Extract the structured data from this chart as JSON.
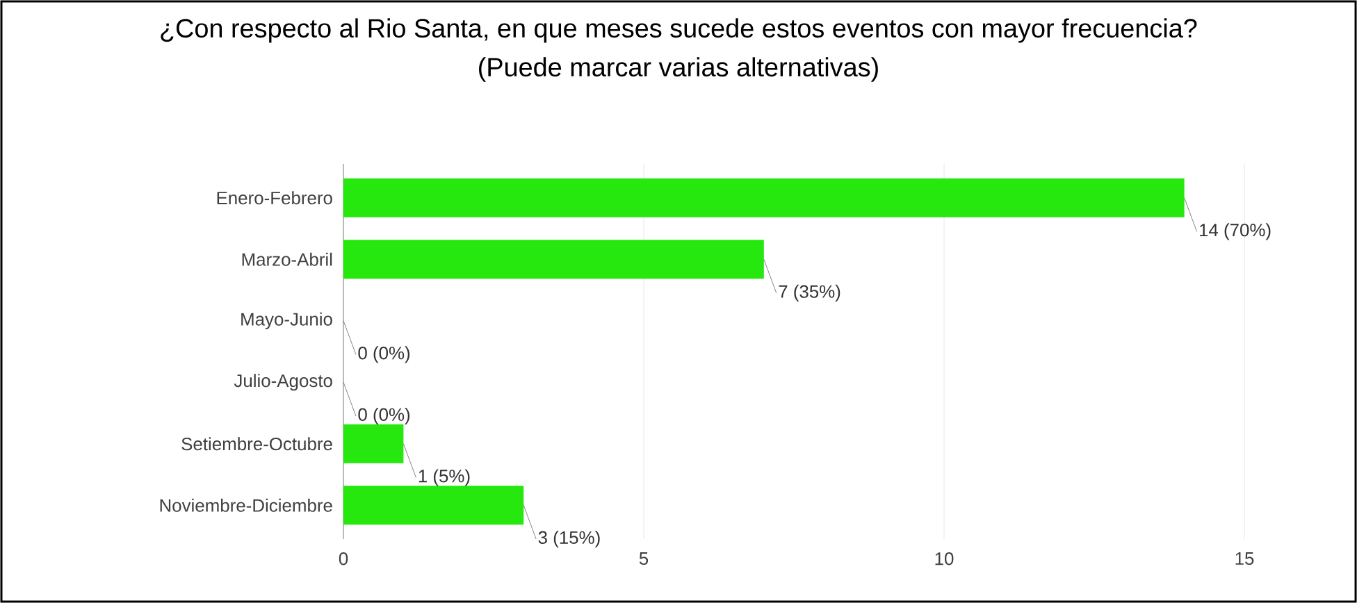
{
  "chart_data": {
    "type": "bar",
    "orientation": "horizontal",
    "title": "¿Con respecto al Rio Santa, en que meses sucede estos eventos con mayor frecuencia?",
    "subtitle": "(Puede marcar varias alternativas)",
    "categories": [
      "Enero-Febrero",
      "Marzo-Abril",
      "Mayo-Junio",
      "Julio-Agosto",
      "Setiembre-Octubre",
      "Noviembre-Diciembre"
    ],
    "values": [
      14,
      7,
      0,
      0,
      1,
      3
    ],
    "value_labels": [
      "14 (70%)",
      "7 (35%)",
      "0 (0%)",
      "0 (0%)",
      "1 (5%)",
      "3 (15%)"
    ],
    "color": "#26e80e",
    "xlim": [
      0,
      15
    ],
    "xticks": [
      0,
      5,
      10,
      15
    ],
    "grid": "x"
  }
}
